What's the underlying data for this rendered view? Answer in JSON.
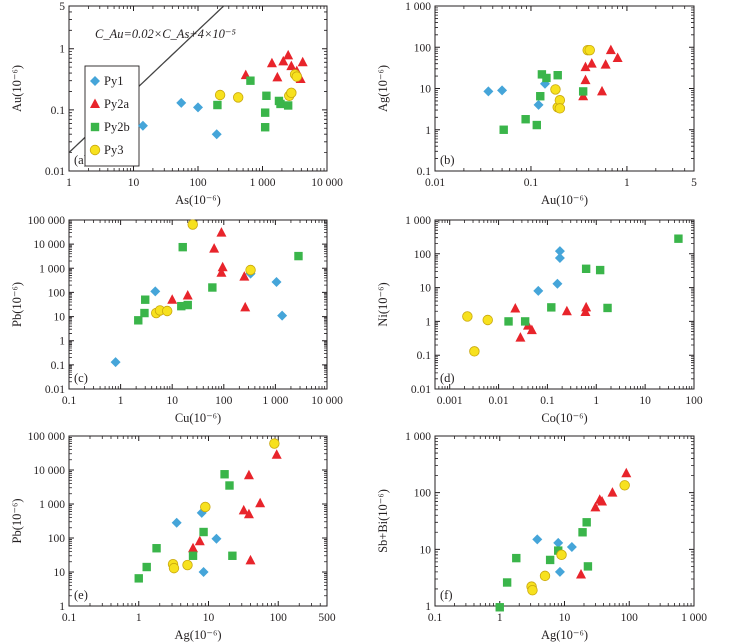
{
  "colors": {
    "Py1": "#45a5d9",
    "Py2a": "#e8242b",
    "Py2b": "#3ab54a",
    "Py3": "#f7e11e",
    "Py3_stroke": "#c9a80e",
    "axis": "#231f20"
  },
  "chart_data": [
    {
      "type": "scatter",
      "panel_label": "(a)",
      "xlabel": "As(10⁻⁶)",
      "ylabel": "Au(10⁻⁶)",
      "xscale": "log",
      "yscale": "log",
      "xlim": [
        1,
        10000
      ],
      "ylim": [
        0.01,
        5
      ],
      "xticks": [
        1,
        10,
        100,
        1000,
        10000
      ],
      "xtick_labels": [
        "1",
        "10",
        "100",
        "1 000",
        "10 000"
      ],
      "yticks": [
        0.01,
        0.1,
        1,
        5
      ],
      "ytick_labels": [
        "0.01",
        "0.1",
        "1",
        "5"
      ],
      "legend": {
        "placement": "left",
        "entries": [
          {
            "series": "Py1",
            "label": "Py1"
          },
          {
            "series": "Py2a",
            "label": "Py2a"
          },
          {
            "series": "Py2b",
            "label": "Py2b"
          },
          {
            "series": "Py3",
            "label": "Py3"
          }
        ]
      },
      "curve": {
        "equation_label": "C_Au=0.02×C_As+4×10⁻⁵",
        "formula": "Au = 0.02 × As + 4e-5"
      },
      "series": [
        {
          "name": "Py1",
          "points": [
            [
              14,
              0.055
            ],
            [
              55,
              0.13
            ],
            [
              100,
              0.11
            ],
            [
              195,
              0.04
            ]
          ]
        },
        {
          "name": "Py2a",
          "points": [
            [
              550,
              0.37
            ],
            [
              1400,
              0.58
            ],
            [
              1700,
              0.34
            ],
            [
              2100,
              0.62
            ],
            [
              2500,
              0.78
            ],
            [
              2800,
              0.52
            ],
            [
              3400,
              0.43
            ],
            [
              3900,
              0.32
            ],
            [
              4200,
              0.6
            ]
          ]
        },
        {
          "name": "Py2b",
          "points": [
            [
              200,
              0.12
            ],
            [
              650,
              0.3
            ],
            [
              1100,
              0.09
            ],
            [
              1150,
              0.17
            ],
            [
              1100,
              0.052
            ],
            [
              1800,
              0.14
            ],
            [
              1900,
              0.125
            ],
            [
              2500,
              0.118
            ]
          ]
        },
        {
          "name": "Py3",
          "points": [
            [
              220,
              0.175
            ],
            [
              420,
              0.16
            ],
            [
              2600,
              0.17
            ],
            [
              2800,
              0.19
            ],
            [
              3200,
              0.38
            ],
            [
              3400,
              0.35
            ]
          ]
        }
      ]
    },
    {
      "type": "scatter",
      "panel_label": "(b)",
      "xlabel": "Au(10⁻⁶)",
      "ylabel": "Ag(10⁻⁶)",
      "xscale": "log",
      "yscale": "log",
      "xlim": [
        0.01,
        5
      ],
      "ylim": [
        0.1,
        1000
      ],
      "xticks": [
        0.01,
        0.1,
        1,
        5
      ],
      "xtick_labels": [
        "0.01",
        "0.1",
        "1",
        "5"
      ],
      "yticks": [
        0.1,
        1,
        10,
        100,
        1000
      ],
      "ytick_labels": [
        "0.1",
        "1",
        "10",
        "100",
        "1 000"
      ],
      "series": [
        {
          "name": "Py1",
          "points": [
            [
              0.036,
              8.5
            ],
            [
              0.05,
              9
            ],
            [
              0.12,
              4
            ],
            [
              0.14,
              13
            ]
          ]
        },
        {
          "name": "Py2a",
          "points": [
            [
              0.35,
              6.5
            ],
            [
              0.37,
              16
            ],
            [
              0.37,
              33
            ],
            [
              0.43,
              40
            ],
            [
              0.55,
              8.5
            ],
            [
              0.6,
              38
            ],
            [
              0.68,
              85
            ],
            [
              0.8,
              55
            ]
          ]
        },
        {
          "name": "Py2b",
          "points": [
            [
              0.052,
              1
            ],
            [
              0.088,
              1.8
            ],
            [
              0.115,
              1.3
            ],
            [
              0.125,
              6.5
            ],
            [
              0.13,
              22
            ],
            [
              0.145,
              18
            ],
            [
              0.19,
              21
            ],
            [
              0.35,
              8.5
            ]
          ]
        },
        {
          "name": "Py3",
          "points": [
            [
              0.18,
              9.5
            ],
            [
              0.19,
              3.5
            ],
            [
              0.2,
              5.2
            ],
            [
              0.2,
              3.3
            ],
            [
              0.39,
              85
            ],
            [
              0.41,
              85
            ]
          ]
        }
      ]
    },
    {
      "type": "scatter",
      "panel_label": "(c)",
      "xlabel": "Cu(10⁻⁶)",
      "ylabel": "Pb(10⁻⁶)",
      "xscale": "log",
      "yscale": "log",
      "xlim": [
        0.1,
        10000
      ],
      "ylim": [
        0.01,
        100000
      ],
      "xticks": [
        0.1,
        1,
        10,
        100,
        1000,
        10000
      ],
      "xtick_labels": [
        "0.1",
        "1",
        "10",
        "100",
        "1 000",
        "10 000"
      ],
      "yticks": [
        0.01,
        0.1,
        1,
        10,
        100,
        1000,
        10000,
        100000
      ],
      "ytick_labels": [
        "0.01",
        "0.1",
        "1",
        "10",
        "100",
        "1 000",
        "10 000",
        "100 000"
      ],
      "series": [
        {
          "name": "Py1",
          "points": [
            [
              0.8,
              0.13
            ],
            [
              4.7,
              110
            ],
            [
              330,
              600
            ],
            [
              1050,
              270
            ],
            [
              1350,
              11
            ]
          ]
        },
        {
          "name": "Py2a",
          "points": [
            [
              10,
              50
            ],
            [
              20,
              75
            ],
            [
              65,
              6500
            ],
            [
              90,
              30000
            ],
            [
              90,
              650
            ],
            [
              95,
              1100
            ],
            [
              250,
              450
            ],
            [
              260,
              24
            ]
          ]
        },
        {
          "name": "Py2b",
          "points": [
            [
              2.2,
              7
            ],
            [
              2.9,
              14
            ],
            [
              3,
              50
            ],
            [
              15,
              27
            ],
            [
              16,
              7500
            ],
            [
              20,
              30
            ],
            [
              60,
              160
            ],
            [
              2800,
              3200
            ]
          ]
        },
        {
          "name": "Py3",
          "points": [
            [
              4.9,
              14
            ],
            [
              5.8,
              18
            ],
            [
              8,
              17
            ],
            [
              25,
              65000
            ],
            [
              330,
              850
            ]
          ]
        }
      ]
    },
    {
      "type": "scatter",
      "panel_label": "(d)",
      "xlabel": "Co(10⁻⁶)",
      "ylabel": "Ni(10⁻⁶)",
      "xscale": "log",
      "yscale": "log",
      "xlim": [
        0.0005,
        100
      ],
      "ylim": [
        0.01,
        1000
      ],
      "xticks": [
        0.001,
        0.01,
        0.1,
        1,
        10,
        100
      ],
      "xtick_labels": [
        "0.001",
        "0.01",
        "0.1",
        "1",
        "10",
        "100"
      ],
      "yticks": [
        0.01,
        0.1,
        1,
        10,
        100,
        1000
      ],
      "ytick_labels": [
        "0.01",
        "0.1",
        "1",
        "10",
        "100",
        "1 000"
      ],
      "series": [
        {
          "name": "Py1",
          "points": [
            [
              0.065,
              8
            ],
            [
              0.16,
              13
            ],
            [
              0.18,
              120
            ],
            [
              0.18,
              75
            ]
          ]
        },
        {
          "name": "Py2a",
          "points": [
            [
              0.022,
              2.4
            ],
            [
              0.028,
              0.33
            ],
            [
              0.04,
              0.75
            ],
            [
              0.048,
              0.55
            ],
            [
              0.25,
              2
            ],
            [
              0.6,
              1.9
            ],
            [
              0.62,
              2.6
            ]
          ]
        },
        {
          "name": "Py2b",
          "points": [
            [
              0.016,
              1
            ],
            [
              0.035,
              1
            ],
            [
              0.12,
              2.6
            ],
            [
              0.62,
              36
            ],
            [
              1.2,
              33
            ],
            [
              1.7,
              2.5
            ],
            [
              48,
              280
            ]
          ]
        },
        {
          "name": "Py3",
          "points": [
            [
              0.0023,
              1.4
            ],
            [
              0.0032,
              0.13
            ],
            [
              0.006,
              1.1
            ]
          ]
        }
      ]
    },
    {
      "type": "scatter",
      "panel_label": "(e)",
      "xlabel": "Ag(10⁻⁶)",
      "ylabel": "Pb(10⁻⁶)",
      "xscale": "log",
      "yscale": "log",
      "xlim": [
        0.1,
        500
      ],
      "ylim": [
        1,
        100000
      ],
      "xticks": [
        0.1,
        1,
        10,
        100,
        500
      ],
      "xtick_labels": [
        "0.1",
        "1",
        "10",
        "100",
        "500"
      ],
      "yticks": [
        1,
        10,
        100,
        1000,
        10000,
        100000
      ],
      "ytick_labels": [
        "1",
        "10",
        "100",
        "1 000",
        "10 000",
        "100 000"
      ],
      "series": [
        {
          "name": "Py1",
          "points": [
            [
              3.5,
              280
            ],
            [
              8,
              550
            ],
            [
              8.5,
              10
            ],
            [
              13,
              95
            ]
          ]
        },
        {
          "name": "Py2a",
          "points": [
            [
              6,
              50
            ],
            [
              7.5,
              80
            ],
            [
              32,
              650
            ],
            [
              38,
              7000
            ],
            [
              38,
              500
            ],
            [
              40,
              22
            ],
            [
              55,
              1050
            ],
            [
              95,
              28000
            ]
          ]
        },
        {
          "name": "Py2b",
          "points": [
            [
              1,
              6.5
            ],
            [
              1.3,
              14
            ],
            [
              1.8,
              50
            ],
            [
              6,
              30
            ],
            [
              8.5,
              150
            ],
            [
              17,
              7500
            ],
            [
              20,
              3500
            ],
            [
              22,
              30
            ]
          ]
        },
        {
          "name": "Py3",
          "points": [
            [
              3.1,
              17
            ],
            [
              3.2,
              13
            ],
            [
              5,
              16
            ],
            [
              9,
              820
            ],
            [
              88,
              60000
            ]
          ]
        }
      ]
    },
    {
      "type": "scatter",
      "panel_label": "(f)",
      "xlabel": "Ag(10⁻⁶)",
      "ylabel": "Sb+Bi(10⁻⁶)",
      "xscale": "log",
      "yscale": "log",
      "xlim": [
        0.1,
        1000
      ],
      "ylim": [
        1,
        1000
      ],
      "xticks": [
        0.1,
        1,
        10,
        100,
        1000
      ],
      "xtick_labels": [
        "0.1",
        "1",
        "10",
        "100",
        "1 000"
      ],
      "yticks": [
        1,
        10,
        100,
        1000
      ],
      "ytick_labels": [
        "1",
        "10",
        "100",
        "1 000"
      ],
      "series": [
        {
          "name": "Py1",
          "points": [
            [
              3.8,
              15
            ],
            [
              8,
              13
            ],
            [
              8.5,
              4
            ],
            [
              13,
              11
            ]
          ]
        },
        {
          "name": "Py2a",
          "points": [
            [
              18,
              3.6
            ],
            [
              30,
              55
            ],
            [
              35,
              75
            ],
            [
              38,
              70
            ],
            [
              55,
              100
            ],
            [
              90,
              220
            ]
          ]
        },
        {
          "name": "Py2b",
          "points": [
            [
              1,
              0.95
            ],
            [
              1.3,
              2.6
            ],
            [
              1.8,
              7
            ],
            [
              6,
              6.5
            ],
            [
              8,
              9.5
            ],
            [
              19,
              20
            ],
            [
              22,
              30
            ],
            [
              23,
              5
            ]
          ]
        },
        {
          "name": "Py3",
          "points": [
            [
              3.1,
              2.2
            ],
            [
              3.2,
              1.9
            ],
            [
              5,
              3.4
            ],
            [
              9,
              8
            ],
            [
              85,
              135
            ]
          ]
        }
      ]
    }
  ]
}
